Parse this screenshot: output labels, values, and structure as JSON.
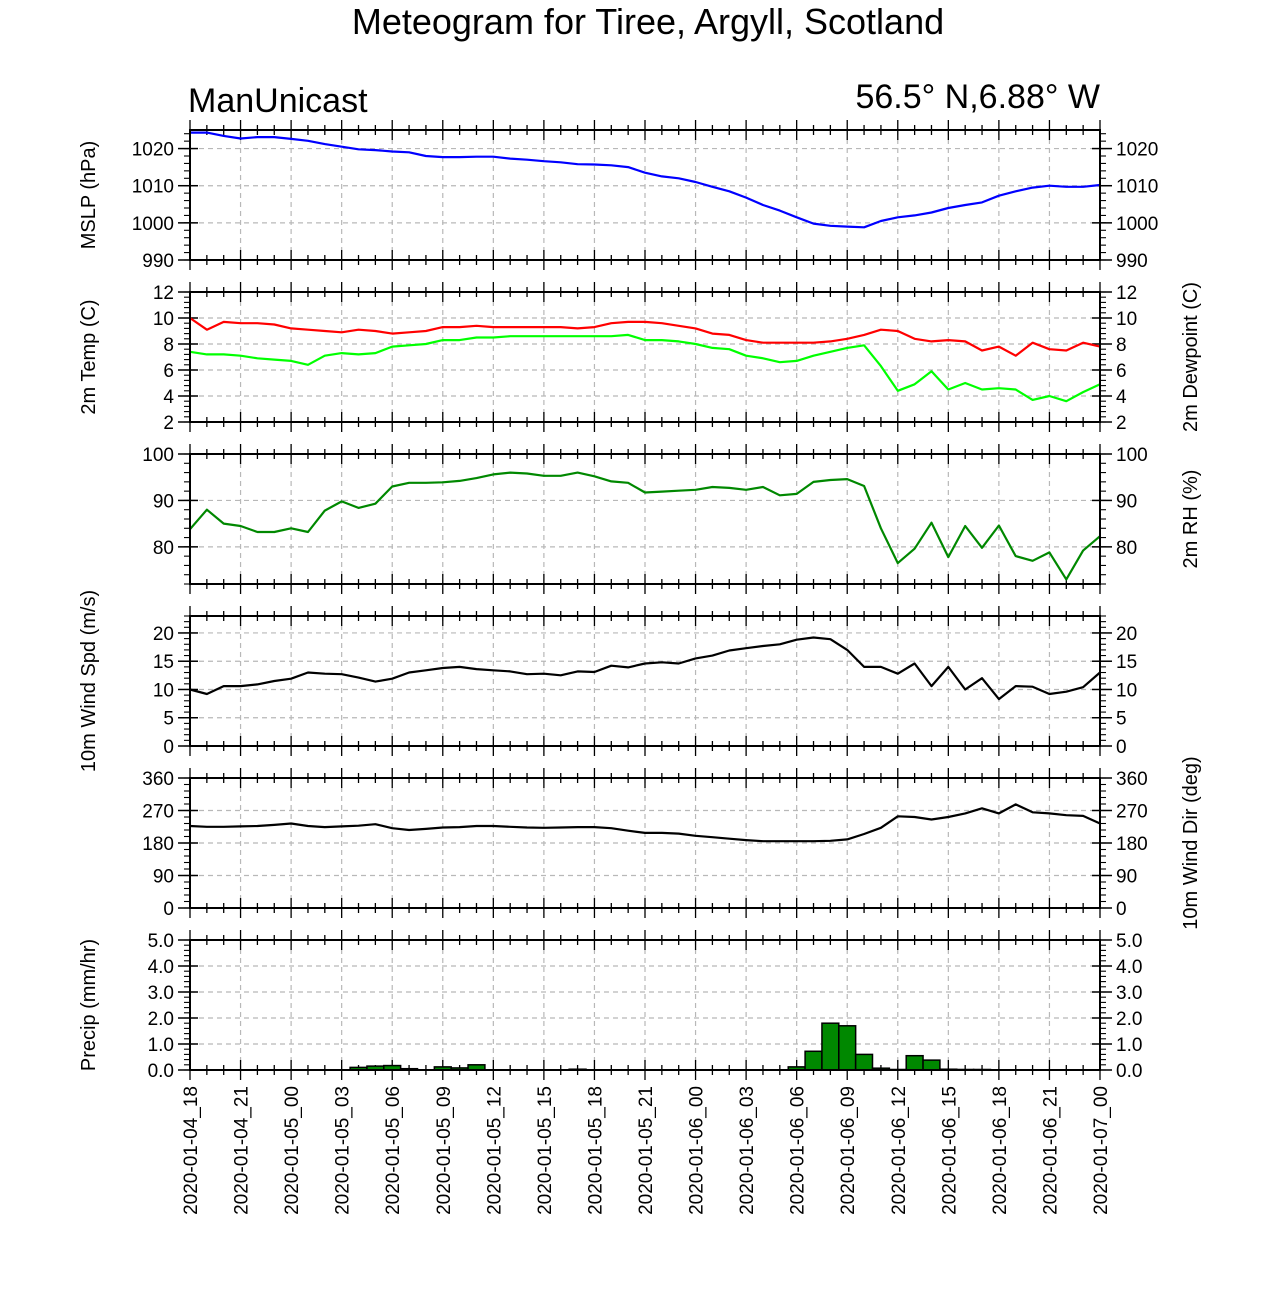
{
  "title": "Meteogram for Tiree, Argyll, Scotland",
  "model": "ManUnicast",
  "location": "56.5° N,6.88° W",
  "colors": {
    "mslp": "#0000ff",
    "temp": "#ff0000",
    "dewpoint": "#00ff00",
    "rh": "#008800",
    "wind": "#000000",
    "precip_fill": "#008800"
  },
  "time_labels": [
    "2020-01-04_18",
    "2020-01-04_21",
    "2020-01-05_00",
    "2020-01-05_03",
    "2020-01-05_06",
    "2020-01-05_09",
    "2020-01-05_12",
    "2020-01-05_15",
    "2020-01-05_18",
    "2020-01-05_21",
    "2020-01-06_00",
    "2020-01-06_03",
    "2020-01-06_06",
    "2020-01-06_09",
    "2020-01-06_12",
    "2020-01-06_15",
    "2020-01-06_18",
    "2020-01-06_21",
    "2020-01-07_00"
  ],
  "chart_data": [
    {
      "type": "line",
      "ylabel_left": "MSLP (hPa)",
      "ylabel_right": "",
      "ylim": [
        990,
        1025
      ],
      "yticks": [
        990,
        1000,
        1010,
        1020
      ],
      "xlim": [
        0,
        54
      ],
      "series": [
        {
          "key": "mslp",
          "x": [
            0,
            1,
            2,
            3,
            4,
            5,
            6,
            7,
            8,
            9,
            10,
            11,
            12,
            13,
            14,
            15,
            16,
            17,
            18,
            19,
            20,
            21,
            22,
            23,
            24,
            25,
            26,
            27,
            28,
            29,
            30,
            31,
            32,
            33,
            34,
            35,
            36,
            37,
            38,
            39,
            40,
            41,
            42,
            43,
            44,
            45,
            46,
            47,
            48,
            49,
            50,
            51,
            52,
            53,
            54
          ],
          "values": [
            1024.3,
            1024.3,
            1023.4,
            1022.7,
            1023.1,
            1023.1,
            1022.6,
            1022.1,
            1021.2,
            1020.5,
            1019.8,
            1019.6,
            1019.2,
            1019.0,
            1018.0,
            1017.7,
            1017.7,
            1017.8,
            1017.8,
            1017.3,
            1017.0,
            1016.6,
            1016.3,
            1015.8,
            1015.7,
            1015.5,
            1015.0,
            1013.5,
            1012.5,
            1012.0,
            1011.0,
            1009.7,
            1008.5,
            1006.8,
            1004.8,
            1003.3,
            1001.5,
            999.8,
            999.2,
            999.0,
            998.8,
            1000.5,
            1001.5,
            1002.0,
            1002.8,
            1004.0,
            1004.8,
            1005.5,
            1007.3,
            1008.5,
            1009.5,
            1010.0,
            1009.7,
            1009.7,
            1010.2
          ]
        }
      ]
    },
    {
      "type": "line",
      "ylabel_left": "2m Temp (C)",
      "ylabel_right": "2m Dewpoint (C)",
      "ylim": [
        2,
        12
      ],
      "yticks": [
        2,
        4,
        6,
        8,
        10,
        12
      ],
      "xlim": [
        0,
        54
      ],
      "series": [
        {
          "key": "temp",
          "x": [
            0,
            1,
            2,
            3,
            4,
            5,
            6,
            7,
            8,
            9,
            10,
            11,
            12,
            13,
            14,
            15,
            16,
            17,
            18,
            19,
            20,
            21,
            22,
            23,
            24,
            25,
            26,
            27,
            28,
            29,
            30,
            31,
            32,
            33,
            34,
            35,
            36,
            37,
            38,
            39,
            40,
            41,
            42,
            43,
            44,
            45,
            46,
            47,
            48,
            49,
            50,
            51,
            52,
            53,
            54
          ],
          "values": [
            10.0,
            9.1,
            9.7,
            9.6,
            9.6,
            9.5,
            9.2,
            9.1,
            9.0,
            8.9,
            9.1,
            9.0,
            8.8,
            8.9,
            9.0,
            9.3,
            9.3,
            9.4,
            9.3,
            9.3,
            9.3,
            9.3,
            9.3,
            9.2,
            9.3,
            9.6,
            9.7,
            9.7,
            9.6,
            9.4,
            9.2,
            8.8,
            8.7,
            8.3,
            8.1,
            8.1,
            8.1,
            8.1,
            8.2,
            8.4,
            8.7,
            9.1,
            9.0,
            8.4,
            8.2,
            8.3,
            8.2,
            7.5,
            7.8,
            7.1,
            8.1,
            7.6,
            7.5,
            8.1,
            7.8
          ]
        },
        {
          "key": "dewpoint",
          "x": [
            0,
            1,
            2,
            3,
            4,
            5,
            6,
            7,
            8,
            9,
            10,
            11,
            12,
            13,
            14,
            15,
            16,
            17,
            18,
            19,
            20,
            21,
            22,
            23,
            24,
            25,
            26,
            27,
            28,
            29,
            30,
            31,
            32,
            33,
            34,
            35,
            36,
            37,
            38,
            39,
            40,
            41,
            42,
            43,
            44,
            45,
            46,
            47,
            48,
            49,
            50,
            51,
            52,
            53,
            54
          ],
          "values": [
            7.4,
            7.2,
            7.2,
            7.1,
            6.9,
            6.8,
            6.7,
            6.4,
            7.1,
            7.3,
            7.2,
            7.3,
            7.8,
            7.9,
            8.0,
            8.3,
            8.3,
            8.5,
            8.5,
            8.6,
            8.6,
            8.6,
            8.6,
            8.6,
            8.6,
            8.6,
            8.7,
            8.3,
            8.3,
            8.2,
            8.0,
            7.7,
            7.6,
            7.1,
            6.9,
            6.6,
            6.7,
            7.1,
            7.4,
            7.7,
            7.9,
            6.3,
            4.4,
            4.9,
            5.9,
            4.5,
            5.0,
            4.5,
            4.6,
            4.5,
            3.7,
            4.0,
            3.6,
            4.3,
            4.9
          ]
        }
      ]
    },
    {
      "type": "line",
      "ylabel_left": "",
      "ylabel_right": "2m RH (%)",
      "ylim": [
        72,
        100
      ],
      "yticks": [
        80,
        90,
        100
      ],
      "xlim": [
        0,
        54
      ],
      "series": [
        {
          "key": "rh",
          "x": [
            0,
            1,
            2,
            3,
            4,
            5,
            6,
            7,
            8,
            9,
            10,
            11,
            12,
            13,
            14,
            15,
            16,
            17,
            18,
            19,
            20,
            21,
            22,
            23,
            24,
            25,
            26,
            27,
            28,
            29,
            30,
            31,
            32,
            33,
            34,
            35,
            36,
            37,
            38,
            39,
            40,
            41,
            42,
            43,
            44,
            45,
            46,
            47,
            48,
            49,
            50,
            51,
            52,
            53,
            54
          ],
          "values": [
            83.8,
            88.0,
            85.0,
            84.5,
            83.2,
            83.2,
            84.0,
            83.2,
            87.8,
            89.8,
            88.4,
            89.3,
            93.0,
            93.8,
            93.8,
            93.9,
            94.2,
            94.8,
            95.6,
            96.0,
            95.8,
            95.3,
            95.3,
            96.0,
            95.2,
            94.1,
            93.8,
            91.7,
            91.9,
            92.1,
            92.3,
            92.9,
            92.7,
            92.3,
            92.9,
            91.1,
            91.4,
            94.0,
            94.4,
            94.6,
            93.1,
            84.0,
            76.5,
            79.6,
            85.2,
            77.8,
            84.5,
            79.8,
            84.6,
            78.0,
            77.0,
            78.8,
            73.0,
            79.2,
            82.3
          ]
        }
      ]
    },
    {
      "type": "line",
      "ylabel_left": "10m Wind Spd (m/s)",
      "ylabel_right": "",
      "ylim": [
        0,
        23
      ],
      "yticks": [
        0,
        5,
        10,
        15,
        20
      ],
      "xlim": [
        0,
        54
      ],
      "series": [
        {
          "key": "wind",
          "x": [
            0,
            1,
            2,
            3,
            4,
            5,
            6,
            7,
            8,
            9,
            10,
            11,
            12,
            13,
            14,
            15,
            16,
            17,
            18,
            19,
            20,
            21,
            22,
            23,
            24,
            25,
            26,
            27,
            28,
            29,
            30,
            31,
            32,
            33,
            34,
            35,
            36,
            37,
            38,
            39,
            40,
            41,
            42,
            43,
            44,
            45,
            46,
            47,
            48,
            49,
            50,
            51,
            52,
            53,
            54
          ],
          "values": [
            10.0,
            9.2,
            10.6,
            10.6,
            10.9,
            11.5,
            11.9,
            13.0,
            12.8,
            12.7,
            12.1,
            11.4,
            11.9,
            13.0,
            13.4,
            13.8,
            14.0,
            13.6,
            13.4,
            13.2,
            12.7,
            12.8,
            12.5,
            13.2,
            13.1,
            14.2,
            13.9,
            14.6,
            14.8,
            14.6,
            15.5,
            16.0,
            16.9,
            17.3,
            17.7,
            18.0,
            18.8,
            19.2,
            18.9,
            17.0,
            14.0,
            14.0,
            12.8,
            14.6,
            10.6,
            14.0,
            10.0,
            12.0,
            8.3,
            10.6,
            10.5,
            9.2,
            9.6,
            10.4,
            13.0
          ]
        }
      ]
    },
    {
      "type": "line",
      "ylabel_left": "",
      "ylabel_right": "10m Wind Dir (deg)",
      "ylim": [
        0,
        360
      ],
      "yticks": [
        0,
        90,
        180,
        270,
        360
      ],
      "xlim": [
        0,
        54
      ],
      "series": [
        {
          "key": "winddir",
          "x": [
            0,
            1,
            2,
            3,
            4,
            5,
            6,
            7,
            8,
            9,
            10,
            11,
            12,
            13,
            14,
            15,
            16,
            17,
            18,
            19,
            20,
            21,
            22,
            23,
            24,
            25,
            26,
            27,
            28,
            29,
            30,
            31,
            32,
            33,
            34,
            35,
            36,
            37,
            38,
            39,
            40,
            41,
            42,
            43,
            44,
            45,
            46,
            47,
            48,
            49,
            50,
            51,
            52,
            53,
            54
          ],
          "values": [
            227,
            225,
            225,
            226,
            227,
            230,
            234,
            227,
            224,
            226,
            228,
            232,
            221,
            216,
            219,
            223,
            224,
            227,
            227,
            225,
            223,
            222,
            223,
            224,
            224,
            221,
            214,
            208,
            208,
            206,
            200,
            196,
            192,
            188,
            185,
            185,
            185,
            185,
            186,
            190,
            205,
            222,
            254,
            252,
            245,
            252,
            262,
            276,
            262,
            287,
            265,
            262,
            257,
            255,
            234
          ]
        }
      ]
    },
    {
      "type": "bar",
      "ylabel_left": "Precip (mm/hr)",
      "ylabel_right": "",
      "ylim": [
        0,
        5
      ],
      "yticks": [
        0.0,
        1.0,
        2.0,
        3.0,
        4.0,
        5.0
      ],
      "yticks_label": [
        "0.0",
        "1.0",
        "2.0",
        "3.0",
        "4.0",
        "5.0"
      ],
      "xlim": [
        0,
        54
      ],
      "x": [
        10,
        11,
        12,
        13,
        15,
        16,
        17,
        23,
        36,
        37,
        38,
        39,
        40,
        41,
        42,
        43,
        44,
        45,
        46,
        47
      ],
      "values": [
        0.1,
        0.15,
        0.17,
        0.05,
        0.12,
        0.08,
        0.2,
        0.03,
        0.12,
        0.72,
        1.8,
        1.7,
        0.6,
        0.07,
        0.02,
        0.55,
        0.38,
        0.03,
        0.02,
        0.02
      ]
    }
  ]
}
